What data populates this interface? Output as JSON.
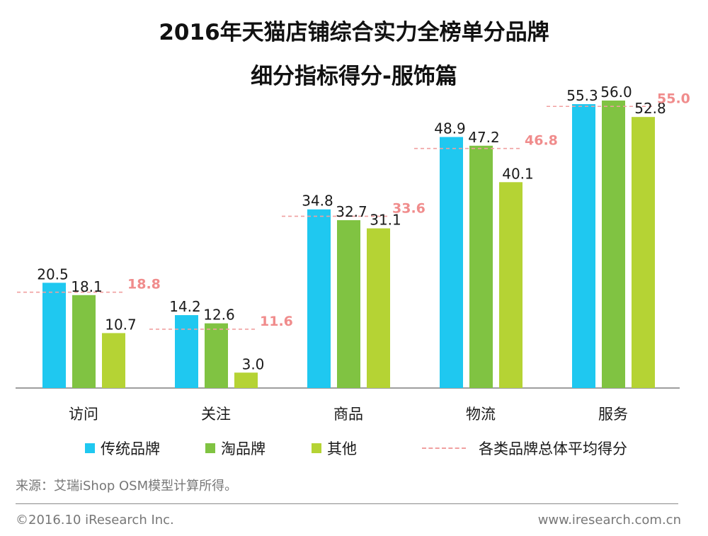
{
  "title_line1": "2016年天猫店铺综合实力全榜单分品牌",
  "title_line2": "细分指标得分-服饰篇",
  "chart_data": {
    "type": "bar",
    "categories": [
      "访问",
      "关注",
      "商品",
      "物流",
      "服务"
    ],
    "series": [
      {
        "name": "传统品牌",
        "values": [
          20.5,
          14.2,
          34.8,
          48.9,
          55.3
        ],
        "color": "#1fc8f0"
      },
      {
        "name": "淘品牌",
        "values": [
          18.1,
          12.6,
          32.7,
          47.2,
          56.0
        ],
        "color": "#80c342"
      },
      {
        "name": "其他",
        "values": [
          10.7,
          3.0,
          31.1,
          40.1,
          52.8
        ],
        "color": "#b5d334"
      }
    ],
    "average": {
      "name": "各类品牌总体平均得分",
      "values": [
        18.8,
        11.6,
        33.6,
        46.8,
        55.0
      ],
      "color": "#f08c8c"
    },
    "ylim": [
      0,
      60
    ],
    "grid": false,
    "legend": "bottom"
  },
  "source": "来源：艾瑞iShop OSM模型计算所得。",
  "footer": {
    "copyright": "©2016.10 iResearch Inc.",
    "website": "www.iresearch.com.cn"
  }
}
